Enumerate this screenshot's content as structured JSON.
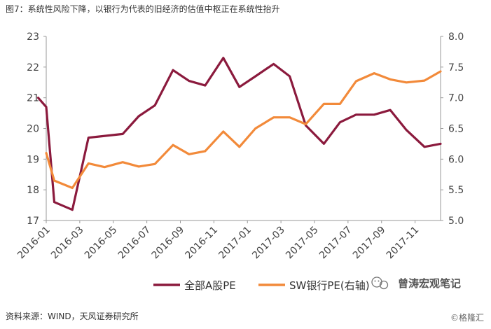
{
  "title": "图7：系统性风险下降，以银行为代表的旧经济的估值中枢正在系统性抬升",
  "source": "资料来源：WIND，天风证券研究所",
  "credit": "©格隆汇",
  "watermark": "曾涛宏观笔记",
  "chart_data": {
    "type": "line",
    "x": [
      "2016-01",
      "2016-02",
      "2016-03",
      "2016-04",
      "2016-05",
      "2016-06",
      "2016-07",
      "2016-08",
      "2016-09",
      "2016-10",
      "2016-11",
      "2016-12",
      "2017-01",
      "2017-02",
      "2017-03",
      "2017-04",
      "2017-05",
      "2017-06",
      "2017-07",
      "2017-08",
      "2017-09",
      "2017-10",
      "2017-11",
      "2017-12"
    ],
    "xticks": [
      "2016-01",
      "2016-03",
      "2016-05",
      "2016-07",
      "2016-09",
      "2016-11",
      "2017-01",
      "2017-03",
      "2017-05",
      "2017-07",
      "2017-09",
      "2017-11"
    ],
    "yticks_left": [
      "17",
      "18",
      "19",
      "20",
      "21",
      "22",
      "23"
    ],
    "yticks_right": [
      "5.0",
      "5.5",
      "6.0",
      "6.5",
      "7.0",
      "7.5",
      "8.0"
    ],
    "ylim_left": [
      17,
      23
    ],
    "ylim_right": [
      5.0,
      8.0
    ],
    "grid": false,
    "legend_position": "bottom",
    "series": [
      {
        "name": "全部A股PE",
        "axis": "left",
        "color": "#8b1a3d",
        "values": [
          [
            2015.96,
            21.0
          ],
          [
            2016.0,
            20.7
          ],
          [
            2016.04,
            17.6
          ],
          [
            2016.13,
            17.35
          ],
          [
            2016.21,
            19.7
          ],
          [
            2016.38,
            19.82
          ],
          [
            2016.46,
            20.4
          ],
          [
            2016.54,
            20.75
          ],
          [
            2016.63,
            21.9
          ],
          [
            2016.71,
            21.55
          ],
          [
            2016.79,
            21.4
          ],
          [
            2016.88,
            22.3
          ],
          [
            2016.96,
            21.35
          ],
          [
            2017.04,
            21.7
          ],
          [
            2017.13,
            22.1
          ],
          [
            2017.21,
            21.7
          ],
          [
            2017.29,
            20.1
          ],
          [
            2017.38,
            19.5
          ],
          [
            2017.46,
            20.2
          ],
          [
            2017.54,
            20.45
          ],
          [
            2017.63,
            20.45
          ],
          [
            2017.71,
            20.6
          ],
          [
            2017.79,
            19.95
          ],
          [
            2017.88,
            19.4
          ],
          [
            2017.96,
            19.5
          ]
        ]
      },
      {
        "name": "SW银行PE(右轴)",
        "axis": "right",
        "color": "#f28a3a",
        "values": [
          [
            2016.0,
            6.1
          ],
          [
            2016.04,
            5.65
          ],
          [
            2016.13,
            5.53
          ],
          [
            2016.21,
            5.93
          ],
          [
            2016.29,
            5.87
          ],
          [
            2016.38,
            5.95
          ],
          [
            2016.46,
            5.88
          ],
          [
            2016.54,
            5.92
          ],
          [
            2016.63,
            6.23
          ],
          [
            2016.71,
            6.08
          ],
          [
            2016.79,
            6.13
          ],
          [
            2016.88,
            6.45
          ],
          [
            2016.96,
            6.2
          ],
          [
            2017.04,
            6.5
          ],
          [
            2017.13,
            6.68
          ],
          [
            2017.21,
            6.68
          ],
          [
            2017.29,
            6.57
          ],
          [
            2017.38,
            6.9
          ],
          [
            2017.46,
            6.9
          ],
          [
            2017.54,
            7.27
          ],
          [
            2017.63,
            7.4
          ],
          [
            2017.71,
            7.3
          ],
          [
            2017.79,
            7.25
          ],
          [
            2017.88,
            7.28
          ],
          [
            2017.96,
            7.43
          ]
        ]
      }
    ]
  }
}
